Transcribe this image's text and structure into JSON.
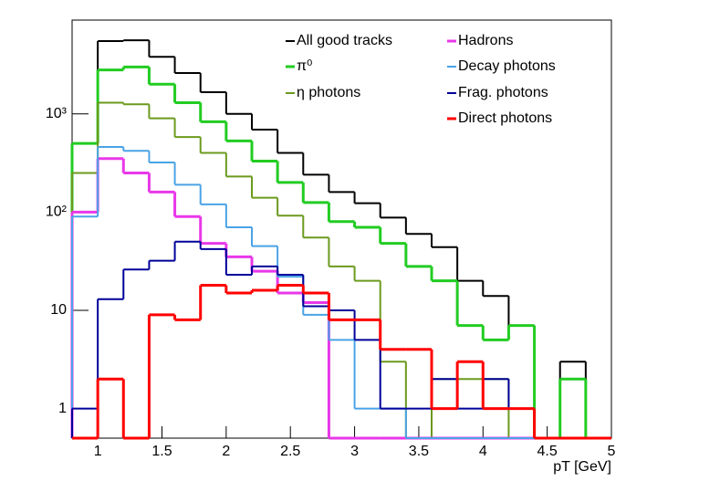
{
  "chart_data": {
    "type": "histogram",
    "xlabel": "pT [GeV]",
    "bins": [
      0.8,
      1.0,
      1.2,
      1.4,
      1.6,
      1.8,
      2.0,
      2.2,
      2.4,
      2.6,
      2.8,
      3.0,
      3.2,
      3.4,
      3.6,
      3.8,
      4.0,
      4.2,
      4.4,
      4.6,
      4.8,
      5.0
    ],
    "series": [
      {
        "name": "All good tracks",
        "color": "#000000",
        "values": [
          500,
          5500,
          5600,
          3800,
          2600,
          1660,
          1000,
          690,
          400,
          240,
          160,
          123,
          88,
          60,
          44,
          20,
          14,
          7,
          0,
          3,
          0
        ]
      },
      {
        "name": "π⁰",
        "color": "#22cc22",
        "values": [
          500,
          2800,
          3000,
          2000,
          1300,
          830,
          530,
          330,
          200,
          125,
          80,
          70,
          48,
          28,
          20,
          7,
          5,
          7,
          0,
          2,
          0
        ]
      },
      {
        "name": "η photons",
        "color": "#6b9a1e",
        "values": [
          250,
          1300,
          1250,
          900,
          580,
          400,
          230,
          140,
          92,
          55,
          28,
          20,
          3,
          0,
          2,
          2,
          2,
          0,
          0,
          0,
          0
        ]
      },
      {
        "name": "Hadrons",
        "color": "#e838e8",
        "values": [
          100,
          350,
          250,
          160,
          90,
          48,
          35,
          25,
          15,
          12,
          0,
          0,
          0,
          0,
          0,
          0,
          0,
          0,
          0,
          0,
          0
        ]
      },
      {
        "name": "Decay photons",
        "color": "#4aa3e6",
        "values": [
          90,
          460,
          420,
          320,
          190,
          120,
          70,
          45,
          22,
          9,
          5,
          1,
          1,
          0,
          0,
          0,
          0,
          0,
          0,
          0,
          0
        ]
      },
      {
        "name": "Frag. photons",
        "color": "#000099",
        "values": [
          1,
          13,
          26,
          32,
          50,
          42,
          23,
          28,
          23,
          11,
          10,
          5,
          1,
          1,
          2,
          1,
          2,
          1,
          0,
          0,
          0
        ]
      },
      {
        "name": "Direct photons",
        "color": "#ff0000",
        "values": [
          0,
          2,
          0,
          9,
          8,
          18,
          15,
          16,
          18,
          15,
          8,
          8,
          4,
          4,
          1,
          3,
          1,
          1,
          0,
          0,
          0
        ]
      }
    ],
    "xlim": [
      0.8,
      5
    ],
    "ylim": [
      0.5,
      9000
    ],
    "xticks": [
      1,
      1.5,
      2,
      2.5,
      3,
      3.5,
      4,
      4.5,
      5
    ],
    "yticks": [
      1,
      10,
      {
        "value": 100,
        "label": "10²"
      },
      {
        "value": 1000,
        "label": "10³"
      }
    ],
    "log_y": true,
    "legend": "upper right"
  }
}
